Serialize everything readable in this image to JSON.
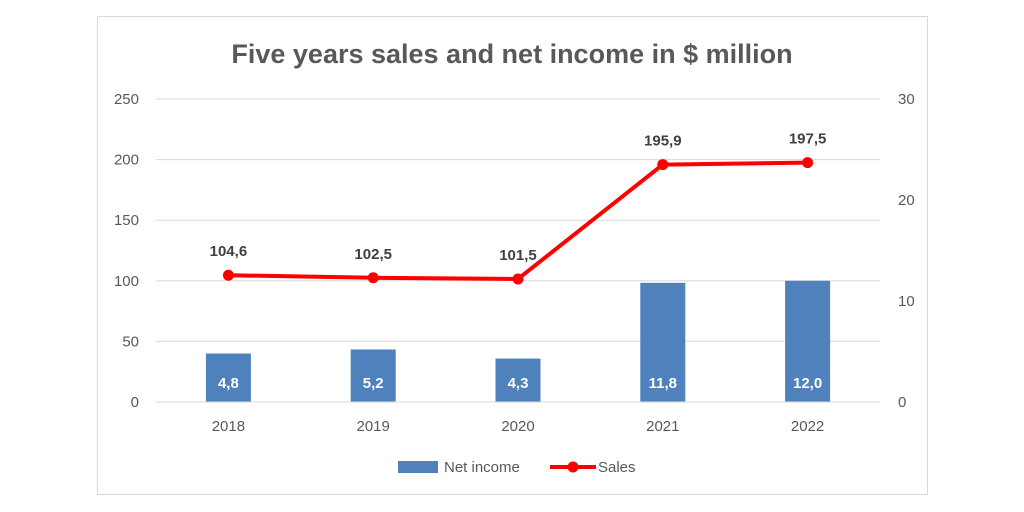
{
  "chart_data": {
    "type": "bar",
    "title": "Five years sales and net income in $ million",
    "categories": [
      "2018",
      "2019",
      "2020",
      "2021",
      "2022"
    ],
    "series": [
      {
        "name": "Net income",
        "type": "bar",
        "axis": "right",
        "values": [
          4.8,
          5.2,
          4.3,
          11.8,
          12.0
        ],
        "labels": [
          "4,8",
          "5,2",
          "4,3",
          "11,8",
          "12,0"
        ],
        "color": "#4f81bd"
      },
      {
        "name": "Sales",
        "type": "line",
        "axis": "left",
        "values": [
          104.6,
          102.5,
          101.5,
          195.9,
          197.5
        ],
        "labels": [
          "104,6",
          "102,5",
          "101,5",
          "195,9",
          "197,5"
        ],
        "color": "#ff0000"
      }
    ],
    "y_left": {
      "min": 0,
      "max": 250,
      "ticks": [
        "0",
        "50",
        "100",
        "150",
        "200",
        "250"
      ]
    },
    "y_right": {
      "min": 0,
      "max": 30,
      "ticks": [
        "0",
        "10",
        "20",
        "30"
      ]
    },
    "grid": true,
    "legend": "bottom"
  }
}
